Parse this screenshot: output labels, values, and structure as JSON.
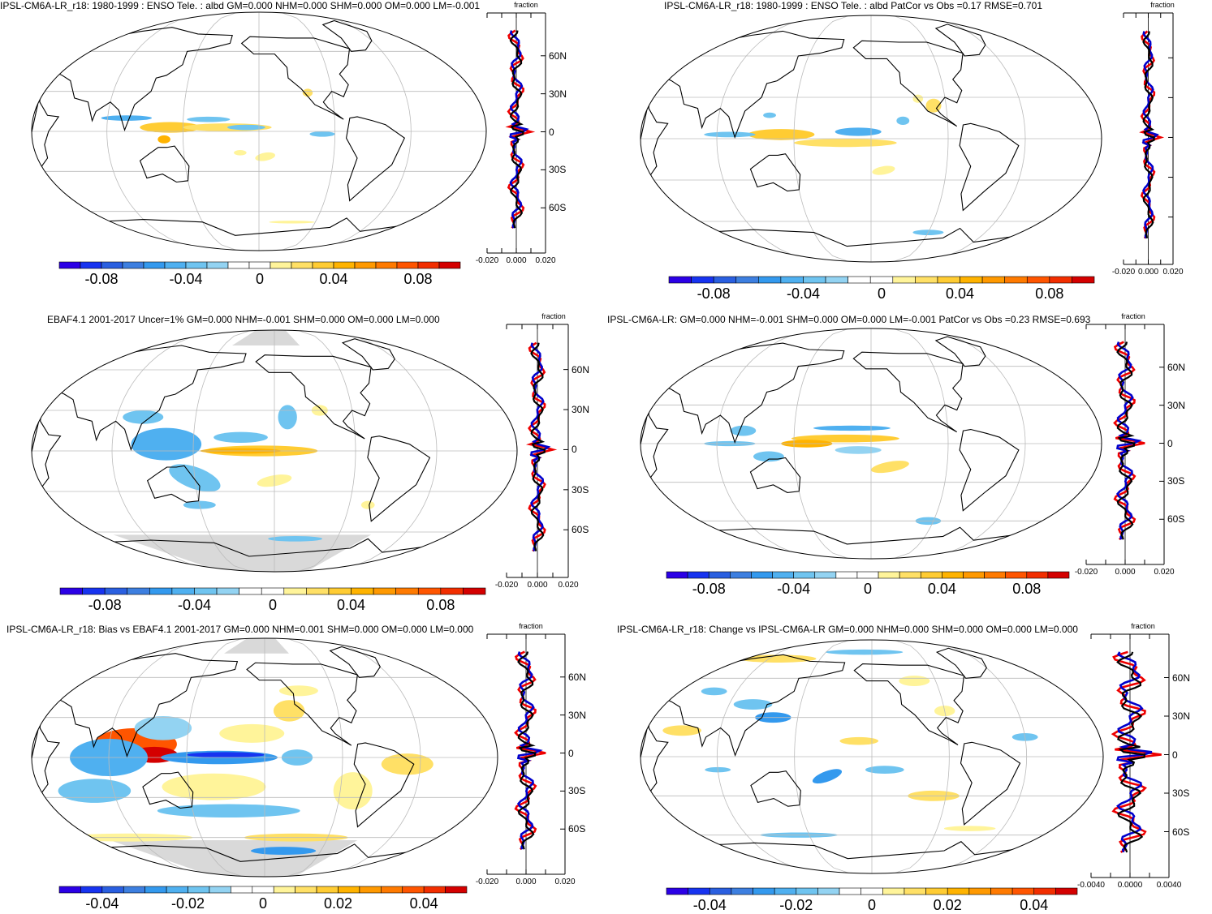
{
  "colors": {
    "palette": [
      "#2b00e6",
      "#1733f0",
      "#2a5fe0",
      "#3d7fe0",
      "#3399ee",
      "#4fb0f0",
      "#6fc4f0",
      "#93d3f2",
      "#ffffff",
      "#ffffff",
      "#fff49a",
      "#ffe066",
      "#ffcc33",
      "#ffb300",
      "#ff9900",
      "#ff7a00",
      "#ff5500",
      "#f22e00",
      "#d40000"
    ],
    "land_mask": "#d9d9d9",
    "coast": "#000000",
    "grid": "#bbbbbb",
    "profile_model": "#0000cc",
    "profile_obs": "#ee0000",
    "profile_mean": "#000000"
  },
  "panels": [
    {
      "id": "p1",
      "title": "IPSL-CM6A-LR_r18: 1980-1999 : ENSO Tele. : albd GM=0.000 NHM=0.000 SHM=0.000 OM=0.000 LM=-0.001",
      "colorbar_labels": [
        "-0.08",
        "-0.04",
        "0",
        "0.04",
        "0.08"
      ],
      "profile_unit": "fraction",
      "profile_ticks": [
        "-0.020",
        "0.000",
        "0.020"
      ],
      "profile_lats": [
        "60N",
        "30N",
        "0",
        "30S",
        "60S"
      ],
      "show_lat_labels": true
    },
    {
      "id": "p2",
      "title": "IPSL-CM6A-LR_r18: 1980-1999 : ENSO Tele. : albd PatCor vs Obs =0.17 RMSE=0.701",
      "colorbar_labels": [
        "-0.08",
        "-0.04",
        "0",
        "0.04",
        "0.08"
      ],
      "profile_unit": "fraction",
      "profile_ticks": [
        "-0.020",
        "0.000",
        "0.020"
      ],
      "profile_lats": [],
      "show_lat_labels": false
    },
    {
      "id": "p3",
      "title": "EBAF4.1 2001-2017 Uncer=1% GM=0.000 NHM=-0.001 SHM=0.000 OM=0.000 LM=0.000",
      "colorbar_labels": [
        "-0.08",
        "-0.04",
        "0",
        "0.04",
        "0.08"
      ],
      "profile_unit": "fraction",
      "profile_ticks": [
        "-0.020",
        "0.000",
        "0.020"
      ],
      "profile_lats": [
        "60N",
        "30N",
        "0",
        "30S",
        "60S"
      ],
      "show_lat_labels": true
    },
    {
      "id": "p4",
      "title": "IPSL-CM6A-LR: GM=0.000 NHM=-0.001 SHM=0.000 OM=0.000 LM=-0.001 PatCor vs Obs =0.23 RMSE=0.693",
      "colorbar_labels": [
        "-0.08",
        "-0.04",
        "0",
        "0.04",
        "0.08"
      ],
      "profile_unit": "fraction",
      "profile_ticks": [
        "-0.020",
        "0.000",
        "0.020"
      ],
      "profile_lats": [
        "60N",
        "30N",
        "0",
        "30S",
        "60S"
      ],
      "show_lat_labels": true
    },
    {
      "id": "p5",
      "title": "IPSL-CM6A-LR_r18: Bias vs EBAF4.1 2001-2017 GM=0.000 NHM=0.001 SHM=0.000 OM=0.000 LM=0.000",
      "colorbar_labels": [
        "-0.04",
        "-0.02",
        "0",
        "0.02",
        "0.04"
      ],
      "profile_unit": "fraction",
      "profile_ticks": [
        "-0.020",
        "0.000",
        "0.020"
      ],
      "profile_lats": [
        "60N",
        "30N",
        "0",
        "30S",
        "60S"
      ],
      "show_lat_labels": true
    },
    {
      "id": "p6",
      "title": "IPSL-CM6A-LR_r18: Change vs IPSL-CM6A-LR GM=0.000 NHM=0.000 SHM=0.000 OM=0.000 LM=0.000",
      "colorbar_labels": [
        "-0.04",
        "-0.02",
        "0",
        "0.02",
        "0.04"
      ],
      "profile_unit": "fraction",
      "profile_ticks": [
        "-0.0040",
        "0.0000",
        "0.0040"
      ],
      "profile_lats": [
        "60N",
        "30N",
        "0",
        "30S",
        "60S"
      ],
      "show_lat_labels": true
    }
  ]
}
